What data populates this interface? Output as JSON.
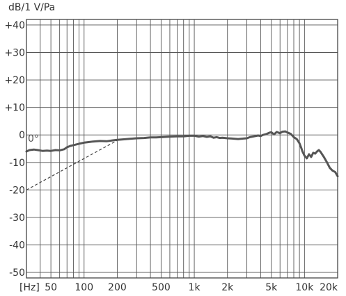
{
  "chart_data": {
    "type": "line",
    "y_unit_label": "dB/1 V/Pa",
    "x_unit_label": "[Hz]",
    "x_scale": "log",
    "xlim": [
      30,
      20000
    ],
    "ylim": [
      -52,
      42
    ],
    "y_ticks": [
      {
        "value": 40,
        "label": "+40"
      },
      {
        "value": 30,
        "label": "+30"
      },
      {
        "value": 20,
        "label": "+20"
      },
      {
        "value": 10,
        "label": "+10"
      },
      {
        "value": 0,
        "label": "0"
      },
      {
        "value": -10,
        "label": "-10"
      },
      {
        "value": -20,
        "label": "-20"
      },
      {
        "value": -30,
        "label": "-30"
      },
      {
        "value": -40,
        "label": "-40"
      },
      {
        "value": -50,
        "label": "-50"
      }
    ],
    "x_ticks": [
      {
        "value": 50,
        "label": "50"
      },
      {
        "value": 100,
        "label": "100"
      },
      {
        "value": 200,
        "label": "200"
      },
      {
        "value": 500,
        "label": "500"
      },
      {
        "value": 1000,
        "label": "1k"
      },
      {
        "value": 2000,
        "label": "2k"
      },
      {
        "value": 5000,
        "label": "5k"
      },
      {
        "value": 10000,
        "label": "10k"
      },
      {
        "value": 20000,
        "label": "20k"
      }
    ],
    "grid": true,
    "legend": "none",
    "annotation": "0°",
    "colors": {
      "response": "#555555",
      "grid": "#555555",
      "reference": "#444444"
    },
    "series": [
      {
        "x": [
          30,
          32,
          35,
          38,
          42,
          46,
          50,
          55,
          60,
          63,
          66,
          70,
          75,
          80,
          90,
          100,
          110,
          120,
          140,
          160,
          180,
          200,
          230,
          260,
          300,
          350,
          400,
          450,
          500,
          600,
          700,
          800,
          900,
          1000,
          1100,
          1200,
          1300,
          1400,
          1500,
          1600,
          1700,
          1800,
          2000,
          2200,
          2500,
          2800,
          3000,
          3200,
          3500,
          3800,
          4000,
          4200,
          4500,
          4800,
          5000,
          5300,
          5600,
          6000,
          6300,
          6700,
          7000,
          7500,
          8000,
          8500,
          9000,
          9300,
          9600,
          10000,
          10500,
          11000,
          11500,
          12000,
          12500,
          13000,
          13500,
          14000,
          15000,
          16000,
          17000,
          18000,
          19000,
          20000
        ],
        "y": [
          -6,
          -5.5,
          -5.3,
          -5.5,
          -5.8,
          -5.7,
          -5.8,
          -5.5,
          -5.6,
          -5.4,
          -5.2,
          -4.5,
          -4,
          -3.7,
          -3.2,
          -2.8,
          -2.6,
          -2.4,
          -2.2,
          -2.3,
          -2,
          -1.8,
          -1.6,
          -1.4,
          -1.2,
          -1.1,
          -0.9,
          -0.9,
          -0.8,
          -0.6,
          -0.5,
          -0.5,
          -0.3,
          -0.3,
          -0.6,
          -0.4,
          -0.7,
          -0.5,
          -1,
          -0.8,
          -1.1,
          -1,
          -1.2,
          -1.3,
          -1.5,
          -1.3,
          -1.2,
          -0.8,
          -0.5,
          -0.2,
          -0.4,
          0,
          0.3,
          0.8,
          1,
          0.2,
          1.1,
          0.6,
          1.2,
          1.3,
          0.9,
          0.4,
          -0.8,
          -1.5,
          -3,
          -4.5,
          -6,
          -7.5,
          -8.5,
          -7,
          -8,
          -6.5,
          -6.8,
          -6,
          -5.5,
          -6.2,
          -8,
          -10,
          -12,
          -13,
          -13.5,
          -15
        ]
      },
      {
        "x": [
          30,
          200
        ],
        "y": [
          -20,
          -2
        ]
      }
    ]
  }
}
